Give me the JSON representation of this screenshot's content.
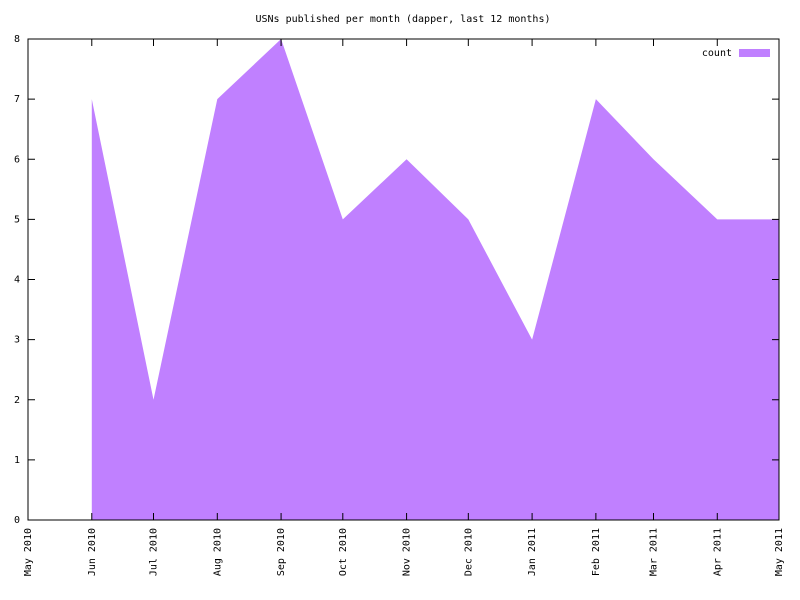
{
  "chart_data": {
    "type": "area",
    "title": "USNs published per month (dapper, last 12 months)",
    "x": [
      "2010-06",
      "2010-07",
      "2010-08",
      "2010-09",
      "2010-10",
      "2010-11",
      "2010-12",
      "2011-01",
      "2011-02",
      "2011-03",
      "2011-04",
      "2011-05"
    ],
    "series": [
      {
        "name": "count",
        "color": "#c080ff",
        "values": [
          7,
          2,
          7,
          8,
          5,
          6,
          5,
          3,
          7,
          6,
          5,
          5
        ]
      }
    ],
    "xlim": [
      "2010-05",
      "2011-05"
    ],
    "xticks": [
      {
        "value": "2010-05",
        "label": "May 2010"
      },
      {
        "value": "2010-06",
        "label": "Jun 2010"
      },
      {
        "value": "2010-07",
        "label": "Jul 2010"
      },
      {
        "value": "2010-08",
        "label": "Aug 2010"
      },
      {
        "value": "2010-09",
        "label": "Sep 2010"
      },
      {
        "value": "2010-10",
        "label": "Oct 2010"
      },
      {
        "value": "2010-11",
        "label": "Nov 2010"
      },
      {
        "value": "2010-12",
        "label": "Dec 2010"
      },
      {
        "value": "2011-01",
        "label": "Jan 2011"
      },
      {
        "value": "2011-02",
        "label": "Feb 2011"
      },
      {
        "value": "2011-03",
        "label": "Mar 2011"
      },
      {
        "value": "2011-04",
        "label": "Apr 2011"
      },
      {
        "value": "2011-05",
        "label": "May 2011"
      }
    ],
    "ylim": [
      0,
      8
    ],
    "yticks": [
      0,
      1,
      2,
      3,
      4,
      5,
      6,
      7,
      8
    ],
    "legend": "top-right"
  }
}
